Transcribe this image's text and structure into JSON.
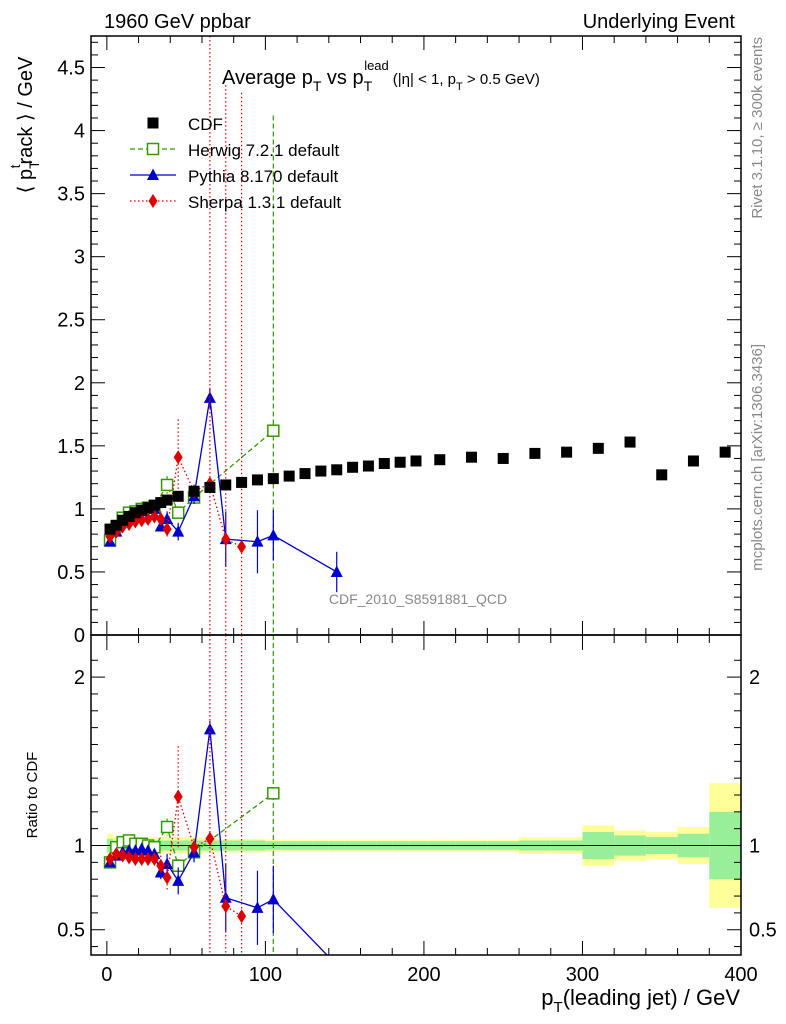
{
  "header": {
    "left": "1960 GeV ppbar",
    "right": "Underlying Event"
  },
  "side": {
    "rivet": "Rivet 3.1.10, ≥ 300k events",
    "mcplots": "mcplots.cern.ch [arXiv:1306.3436]"
  },
  "chart_data": {
    "type": "scatter",
    "title": {
      "part1": "Average p",
      "sub1": "T",
      "part2": " vs p",
      "sub2": "T",
      "sup2": "lead",
      "part3": "(|η| < 1, p",
      "sub3": "T",
      "part4": " > 0.5 GeV)"
    },
    "analysis_label": "CDF_2010_S8591881_QCD",
    "ylabel": {
      "a": "⟨ p",
      "sub": "T",
      "sup": "t",
      "b": "rack ⟩ / GeV"
    },
    "xlabel": {
      "a": "p",
      "sub": "T",
      "b": "(leading jet) / GeV"
    },
    "ratio_ylabel": "Ratio to CDF",
    "xlim": [
      -10,
      400
    ],
    "ylim_main": [
      0,
      4.75
    ],
    "ylim_ratio": [
      0.35,
      2.25
    ],
    "x_ticks": [
      "0",
      "100",
      "200",
      "300",
      "400"
    ],
    "y_ticks_main": [
      "0",
      "0.5",
      "1",
      "1.5",
      "2",
      "2.5",
      "3",
      "3.5",
      "4",
      "4.5"
    ],
    "y_ticks_ratio": [
      "0.5",
      "1",
      "2"
    ],
    "legend_position": "top-left",
    "series": [
      {
        "name": "CDF",
        "color": "#000000",
        "marker": "square",
        "x": [
          2,
          6,
          10,
          14,
          18,
          22,
          26,
          30,
          34,
          38,
          45,
          55,
          65,
          75,
          85,
          95,
          105,
          115,
          125,
          135,
          145,
          155,
          165,
          175,
          185,
          195,
          210,
          230,
          250,
          270,
          290,
          310,
          330,
          350,
          370,
          390
        ],
        "y": [
          0.84,
          0.87,
          0.91,
          0.94,
          0.97,
          0.99,
          1.01,
          1.03,
          1.05,
          1.07,
          1.1,
          1.14,
          1.17,
          1.19,
          1.21,
          1.23,
          1.24,
          1.26,
          1.28,
          1.3,
          1.31,
          1.33,
          1.34,
          1.36,
          1.37,
          1.38,
          1.39,
          1.41,
          1.4,
          1.44,
          1.45,
          1.48,
          1.53,
          1.27,
          1.38,
          1.45
        ],
        "ratio_band_inner": [
          0.04,
          0.03,
          0.03,
          0.03,
          0.03,
          0.03,
          0.03,
          0.03,
          0.03,
          0.03,
          0.03,
          0.03,
          0.03,
          0.03,
          0.03,
          0.03,
          0.025,
          0.025,
          0.025,
          0.025,
          0.025,
          0.025,
          0.025,
          0.025,
          0.025,
          0.025,
          0.025,
          0.025,
          0.025,
          0.03,
          0.03,
          0.08,
          0.06,
          0.05,
          0.07,
          0.2
        ],
        "ratio_band_outer": [
          0.07,
          0.05,
          0.05,
          0.05,
          0.05,
          0.05,
          0.05,
          0.05,
          0.05,
          0.05,
          0.05,
          0.05,
          0.04,
          0.04,
          0.04,
          0.04,
          0.035,
          0.035,
          0.035,
          0.035,
          0.035,
          0.035,
          0.035,
          0.035,
          0.035,
          0.035,
          0.035,
          0.035,
          0.035,
          0.05,
          0.05,
          0.12,
          0.09,
          0.08,
          0.11,
          0.37
        ]
      },
      {
        "name": "Herwig 7.2.1 default",
        "color": "#339900",
        "marker": "open-square",
        "line": "dashed",
        "x": [
          2,
          6,
          10,
          14,
          18,
          22,
          26,
          30,
          38,
          45,
          55,
          105
        ],
        "y": [
          0.75,
          0.86,
          0.93,
          0.97,
          0.98,
          1.0,
          1.01,
          1.02,
          1.19,
          0.97,
          1.09,
          1.62
        ],
        "yerr": [
          0.02,
          0.02,
          0.02,
          0.02,
          0.02,
          0.02,
          0.02,
          0.02,
          0.07,
          0.04,
          0.05,
          2.5
        ],
        "ratio": [
          0.9,
          0.99,
          1.02,
          1.03,
          1.01,
          1.01,
          1.0,
          0.99,
          1.11,
          0.88,
          0.96,
          1.31
        ],
        "ratio_err": [
          0.02,
          0.02,
          0.02,
          0.02,
          0.02,
          0.02,
          0.02,
          0.02,
          0.05,
          0.04,
          0.05,
          2.0
        ]
      },
      {
        "name": "Pythia 8.170 default",
        "color": "#0000cc",
        "marker": "triangle",
        "line": "solid",
        "x": [
          2,
          6,
          10,
          14,
          18,
          22,
          26,
          30,
          34,
          38,
          45,
          55,
          65,
          75,
          95,
          105,
          145
        ],
        "y": [
          0.74,
          0.82,
          0.9,
          0.94,
          0.96,
          0.98,
          1.0,
          1.0,
          0.86,
          0.92,
          0.82,
          1.1,
          1.88,
          0.76,
          0.74,
          0.79,
          0.5
        ],
        "yerr": [
          0.02,
          0.02,
          0.02,
          0.02,
          0.02,
          0.02,
          0.02,
          0.03,
          0.04,
          0.06,
          0.07,
          0.06,
          0.08,
          0.22,
          0.25,
          0.2,
          0.16
        ],
        "ratio": [
          0.9,
          0.94,
          0.96,
          0.97,
          0.97,
          0.98,
          0.97,
          0.95,
          0.84,
          0.89,
          0.79,
          0.96,
          1.69,
          0.69,
          0.63,
          0.68,
          0.29
        ],
        "ratio_err": [
          0.02,
          0.02,
          0.02,
          0.02,
          0.02,
          0.02,
          0.02,
          0.03,
          0.04,
          0.06,
          0.08,
          0.06,
          0.05,
          0.2,
          0.22,
          0.2,
          0.0
        ]
      },
      {
        "name": "Sherpa 1.3.1 default",
        "color": "#dd0000",
        "marker": "diamond",
        "line": "dotted",
        "x": [
          2,
          6,
          10,
          14,
          18,
          22,
          26,
          30,
          34,
          38,
          45,
          55,
          65,
          75,
          85
        ],
        "y": [
          0.78,
          0.82,
          0.86,
          0.88,
          0.9,
          0.91,
          0.92,
          0.94,
          0.92,
          0.84,
          1.41,
          1.14,
          1.2,
          0.76,
          0.7
        ],
        "yerr": [
          0.02,
          0.02,
          0.02,
          0.02,
          0.02,
          0.02,
          0.02,
          0.03,
          0.06,
          0.08,
          0.3,
          0.05,
          3.6,
          3.6,
          3.6
        ],
        "ratio": [
          0.92,
          0.95,
          0.94,
          0.93,
          0.92,
          0.92,
          0.92,
          0.92,
          0.88,
          0.81,
          1.29,
          0.99,
          1.04,
          0.64,
          0.58
        ],
        "ratio_err": [
          0.02,
          0.02,
          0.02,
          0.02,
          0.02,
          0.02,
          0.02,
          0.03,
          0.06,
          0.08,
          0.3,
          0.05,
          2.0,
          2.0,
          2.0
        ]
      }
    ]
  }
}
